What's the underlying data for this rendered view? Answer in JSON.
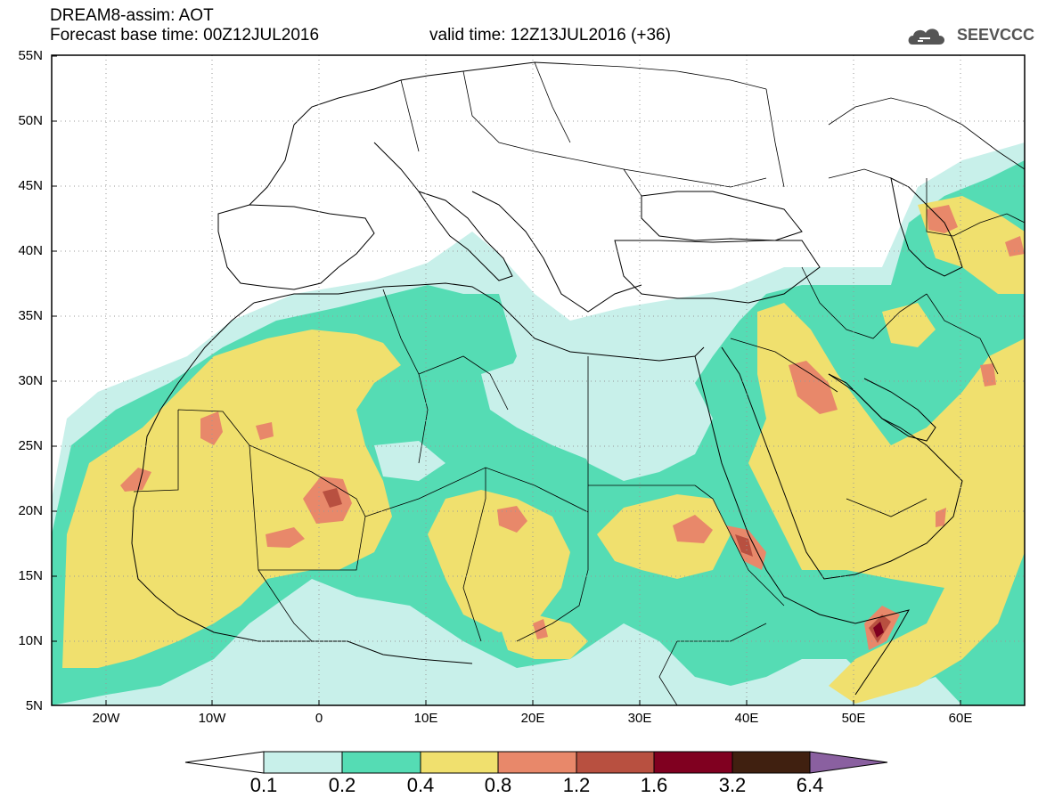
{
  "header": {
    "title": "DREAM8-assim: AOT",
    "base_time": "Forecast base time: 00Z12JUL2016",
    "valid_time": "valid time: 12Z13JUL2016 (+36)"
  },
  "logo": {
    "text": "SEEVCCC",
    "icon": "cloud-icon"
  },
  "axes": {
    "lat_labels": [
      "55N",
      "50N",
      "45N",
      "40N",
      "35N",
      "30N",
      "25N",
      "20N",
      "15N",
      "10N",
      "5N"
    ],
    "lat_values": [
      55,
      50,
      45,
      40,
      35,
      30,
      25,
      20,
      15,
      10,
      5
    ],
    "lon_labels": [
      "20W",
      "10W",
      "0",
      "10E",
      "20E",
      "30E",
      "40E",
      "50E",
      "60E"
    ],
    "lon_values": [
      -20,
      -10,
      0,
      10,
      20,
      30,
      40,
      50,
      60
    ],
    "lon_range": [
      -25,
      65
    ],
    "lat_range": [
      5,
      55
    ],
    "grid": "dotted"
  },
  "colorbar": {
    "labels": [
      "0.1",
      "0.2",
      "0.4",
      "0.8",
      "1.2",
      "1.6",
      "3.2",
      "6.4"
    ],
    "colors": [
      "#c8f0ea",
      "#55dcb4",
      "#f0e06e",
      "#e8886a",
      "#b85040",
      "#800020",
      "#402010",
      "#8a60a0"
    ]
  },
  "colors": {
    "band_0_1": "#c8f0ea",
    "band_0_2": "#55dcb4",
    "band_0_4": "#f0e06e",
    "band_0_8": "#e8886a",
    "band_1_2": "#b85040",
    "band_1_6": "#800020",
    "band_3_2": "#402010",
    "band_6_4": "#8a60a0"
  }
}
